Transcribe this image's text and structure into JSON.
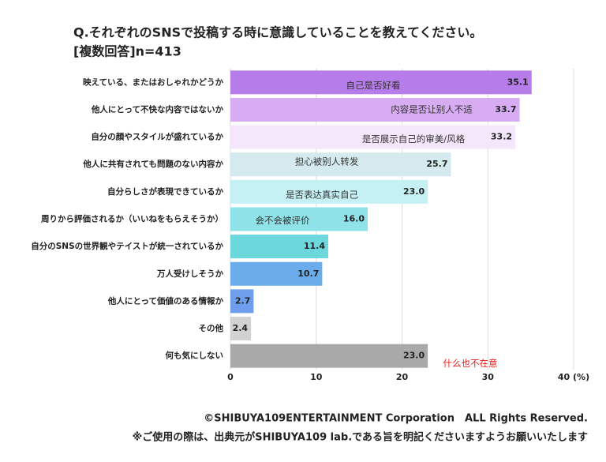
{
  "chart_data": {
    "type": "bar",
    "orientation": "horizontal",
    "title": "Q.それぞれのSNSで投稿する時に意識していることを教えてください。",
    "subtitle": "[複数回答]n=413",
    "categories": [
      "映えている、またはおしゃれかどうか",
      "他人にとって不快な内容ではないか",
      "自分の顔やスタイルが盛れているか",
      "他人に共有されても問題のない内容か",
      "自分らしさが表現できているか",
      "周りから評価されるか（いいねをもらえそうか）",
      "自分のSNSの世界観やテイストが統一されているか",
      "万人受けしそうか",
      "他人にとって価値のある情報か",
      "その他",
      "何も気にしない"
    ],
    "values": [
      35.1,
      33.7,
      33.2,
      25.7,
      23.0,
      16.0,
      11.4,
      10.7,
      2.7,
      2.4,
      23.0
    ],
    "value_labels": [
      "35.1",
      "33.7",
      "33.2",
      "25.7",
      "23.0",
      "16.0",
      "11.4",
      "10.7",
      "2.7",
      "2.4",
      "23.0"
    ],
    "colors": [
      "#b67ce9",
      "#d7acf2",
      "#f4e7fb",
      "#d5eaee",
      "#c5f1f5",
      "#8fe2e7",
      "#6dd7de",
      "#6aadea",
      "#6f9fec",
      "#d2d2d2",
      "#a9a9a9"
    ],
    "annotations": [
      "自己是否好看",
      "内容是否让别人不适",
      "是否展示自己的审美/风格",
      "担心被别人转发",
      "是否表达真实自己",
      "会不会被评价",
      null,
      null,
      null,
      null,
      "什么也不在意"
    ],
    "xlim": [
      0,
      40
    ],
    "xticks": [
      0,
      10,
      20,
      30,
      {
        "value": 40,
        "label": "40 (%)"
      }
    ],
    "grid": true,
    "footer": [
      "©SHIBUYA109ENTERTAINMENT Corporation　ALL Rights Reserved.",
      "※ご使用の際は、出典元がSHIBUYA109 lab.である旨を明記くださいますようお願いいたします"
    ]
  }
}
